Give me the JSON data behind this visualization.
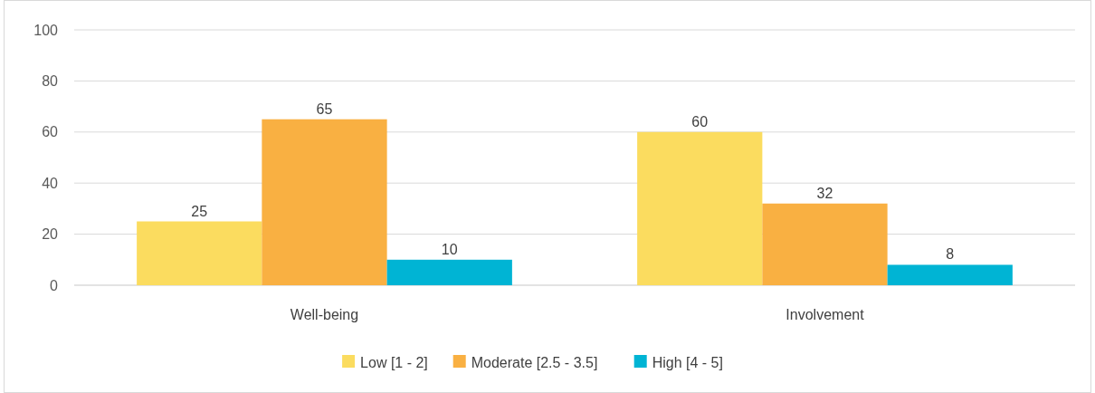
{
  "chart_data": {
    "type": "bar",
    "categories": [
      "Well-being",
      "Involvement"
    ],
    "series": [
      {
        "name": "Low [1 - 2]",
        "color": "#fbdc5f",
        "values": [
          25,
          60
        ]
      },
      {
        "name": "Moderate [2.5 - 3.5]",
        "color": "#f9b042",
        "values": [
          65,
          32
        ]
      },
      {
        "name": "High [4 - 5]",
        "color": "#00b4d4",
        "values": [
          10,
          8
        ]
      }
    ],
    "ylim": [
      0,
      100
    ],
    "yticks": [
      0,
      20,
      40,
      60,
      80,
      100
    ],
    "grid": "y",
    "legend": "bottom",
    "data_labels": true
  }
}
